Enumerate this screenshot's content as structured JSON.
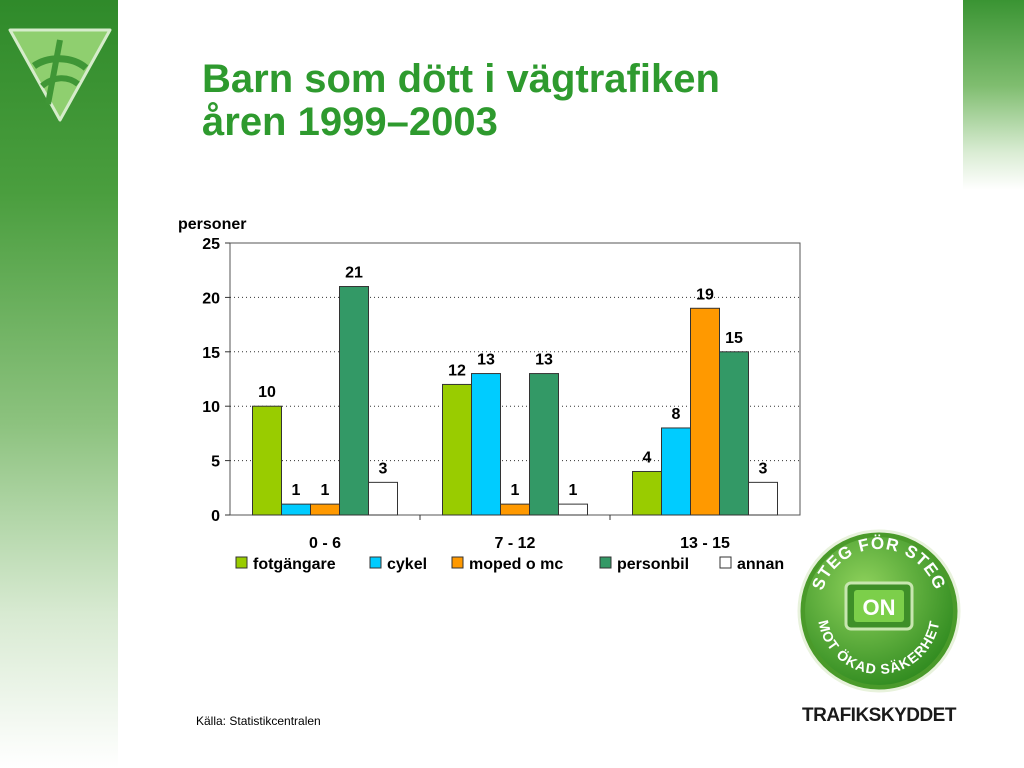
{
  "title_line1": "Barn som dött i vägtrafiken",
  "title_line2": "åren 1999–2003",
  "source": "Källa: Statistikcentralen",
  "badge": {
    "top_text": "STEG FÖR STEG",
    "bottom_text": "MOT ÖKAD SÄKERHET",
    "center_text": "ON",
    "org_name": "TRAFIKSKYDDET"
  },
  "logo": {
    "icon": "trafikskyddet-v-logo-icon",
    "color": "#8fcf6f"
  },
  "colors": {
    "accent": "#2e9a2e",
    "band": "#3a9433"
  },
  "chart_data": {
    "type": "bar",
    "ylabel": "personer",
    "ylim": [
      0,
      25
    ],
    "yticks": [
      0,
      5,
      10,
      15,
      20,
      25
    ],
    "categories": [
      "0 - 6",
      "7 - 12",
      "13 - 15"
    ],
    "series": [
      {
        "name": "fotgängare",
        "color": "#99cc00",
        "values": [
          10,
          12,
          4
        ]
      },
      {
        "name": "cykel",
        "color": "#00ccff",
        "values": [
          1,
          13,
          8
        ]
      },
      {
        "name": "moped o mc",
        "color": "#ff9900",
        "values": [
          1,
          1,
          19
        ]
      },
      {
        "name": "personbil",
        "color": "#339966",
        "values": [
          21,
          13,
          15
        ]
      },
      {
        "name": "annan",
        "color": "#ffffff",
        "values": [
          3,
          1,
          3
        ]
      }
    ],
    "grid": "dotted horizontal",
    "legend": "bottom",
    "data_labels": true
  }
}
